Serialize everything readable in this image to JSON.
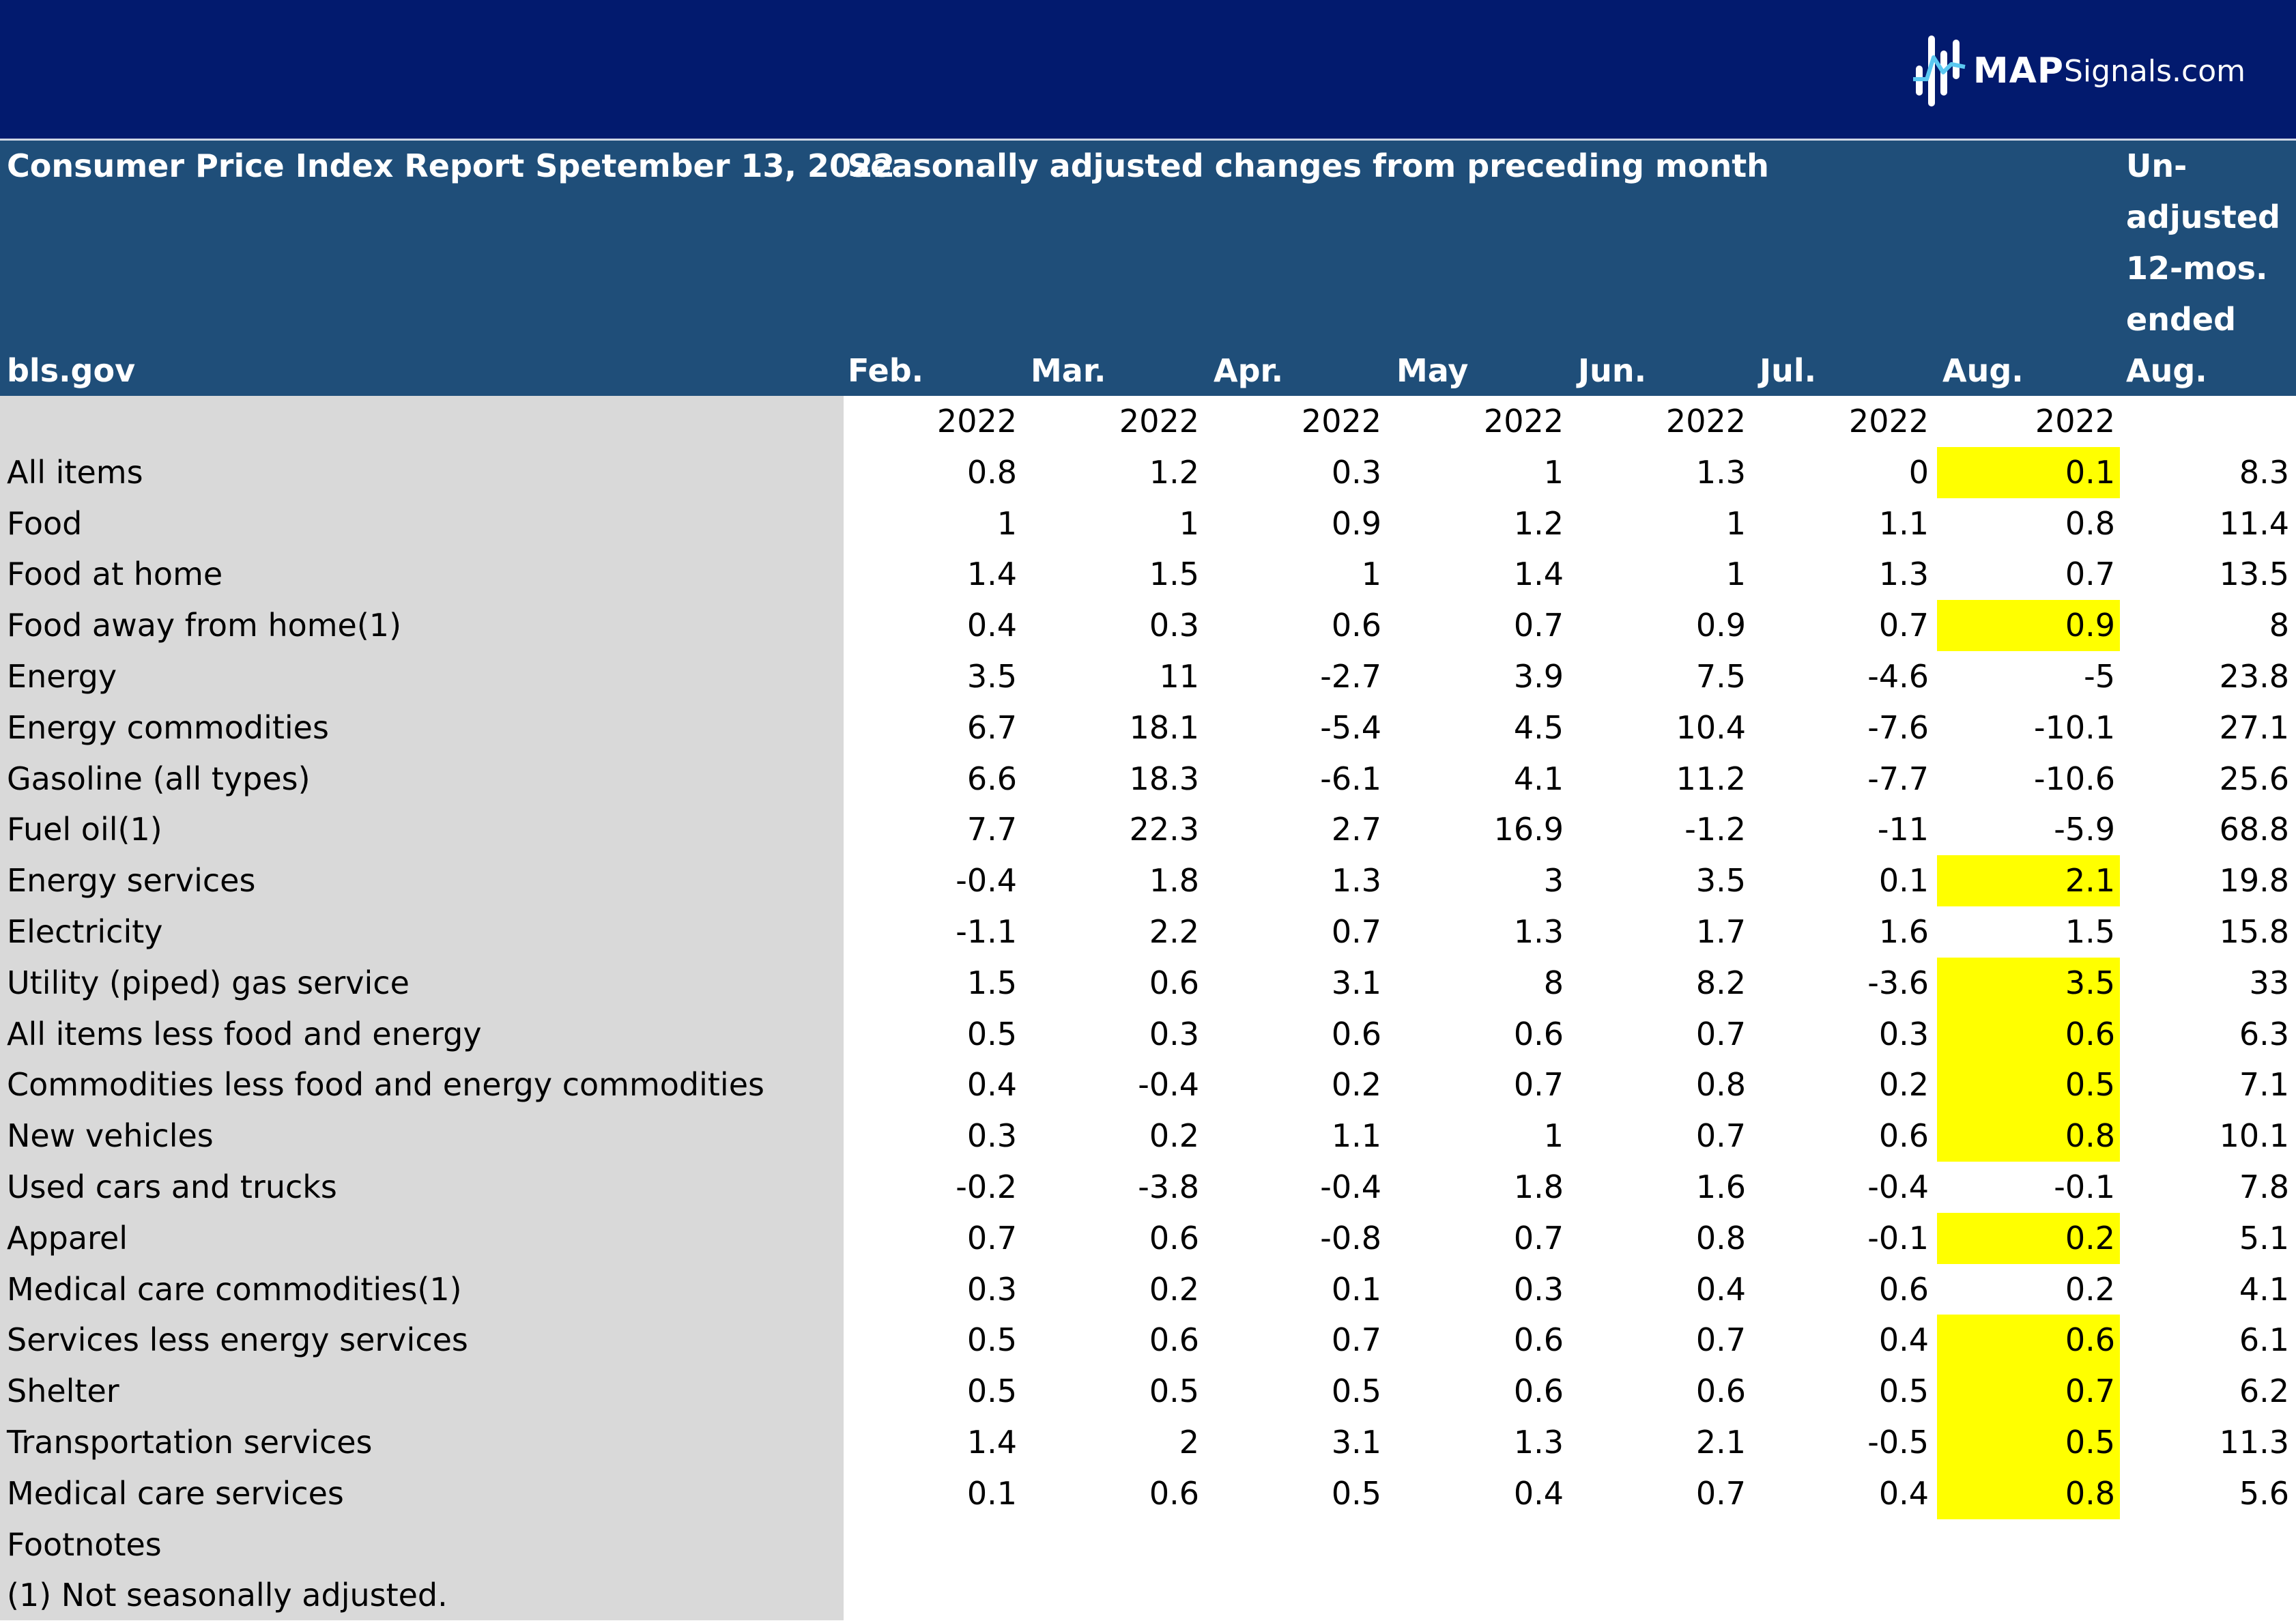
{
  "brand": {
    "name_bold": "MAP",
    "name_light": "Signals.com"
  },
  "header": {
    "title": "Consumer Price Index Report Spetember 13, 2022",
    "subtitle": "Seasonally adjusted changes from preceding month",
    "source": "bls.gov",
    "months": [
      "Feb.",
      "Mar.",
      "Apr.",
      "May",
      "Jun.",
      "Jul.",
      "Aug."
    ],
    "unadjusted": [
      "Un-",
      "adjusted",
      "12-mos.",
      "ended",
      "Aug. 2022"
    ]
  },
  "year_row": [
    "2022",
    "2022",
    "2022",
    "2022",
    "2022",
    "2022",
    "2022"
  ],
  "rows": [
    {
      "label": "All items",
      "values": [
        "0.8",
        "1.2",
        "0.3",
        "1",
        "1.3",
        "0",
        "0.1"
      ],
      "unadj": "8.3",
      "highlight": true
    },
    {
      "label": "Food",
      "values": [
        "1",
        "1",
        "0.9",
        "1.2",
        "1",
        "1.1",
        "0.8"
      ],
      "unadj": "11.4",
      "highlight": false
    },
    {
      "label": "Food at home",
      "values": [
        "1.4",
        "1.5",
        "1",
        "1.4",
        "1",
        "1.3",
        "0.7"
      ],
      "unadj": "13.5",
      "highlight": false
    },
    {
      "label": "Food away from home(1)",
      "values": [
        "0.4",
        "0.3",
        "0.6",
        "0.7",
        "0.9",
        "0.7",
        "0.9"
      ],
      "unadj": "8",
      "highlight": true
    },
    {
      "label": "Energy",
      "values": [
        "3.5",
        "11",
        "-2.7",
        "3.9",
        "7.5",
        "-4.6",
        "-5"
      ],
      "unadj": "23.8",
      "highlight": false
    },
    {
      "label": "Energy commodities",
      "values": [
        "6.7",
        "18.1",
        "-5.4",
        "4.5",
        "10.4",
        "-7.6",
        "-10.1"
      ],
      "unadj": "27.1",
      "highlight": false
    },
    {
      "label": "Gasoline (all types)",
      "values": [
        "6.6",
        "18.3",
        "-6.1",
        "4.1",
        "11.2",
        "-7.7",
        "-10.6"
      ],
      "unadj": "25.6",
      "highlight": false
    },
    {
      "label": "Fuel oil(1)",
      "values": [
        "7.7",
        "22.3",
        "2.7",
        "16.9",
        "-1.2",
        "-11",
        "-5.9"
      ],
      "unadj": "68.8",
      "highlight": false
    },
    {
      "label": "Energy services",
      "values": [
        "-0.4",
        "1.8",
        "1.3",
        "3",
        "3.5",
        "0.1",
        "2.1"
      ],
      "unadj": "19.8",
      "highlight": true
    },
    {
      "label": "Electricity",
      "values": [
        "-1.1",
        "2.2",
        "0.7",
        "1.3",
        "1.7",
        "1.6",
        "1.5"
      ],
      "unadj": "15.8",
      "highlight": false
    },
    {
      "label": "Utility (piped) gas service",
      "values": [
        "1.5",
        "0.6",
        "3.1",
        "8",
        "8.2",
        "-3.6",
        "3.5"
      ],
      "unadj": "33",
      "highlight": true
    },
    {
      "label": "All items less food and energy",
      "values": [
        "0.5",
        "0.3",
        "0.6",
        "0.6",
        "0.7",
        "0.3",
        "0.6"
      ],
      "unadj": "6.3",
      "highlight": true
    },
    {
      "label": "Commodities less food and energy commodities",
      "values": [
        "0.4",
        "-0.4",
        "0.2",
        "0.7",
        "0.8",
        "0.2",
        "0.5"
      ],
      "unadj": "7.1",
      "highlight": true
    },
    {
      "label": "New vehicles",
      "values": [
        "0.3",
        "0.2",
        "1.1",
        "1",
        "0.7",
        "0.6",
        "0.8"
      ],
      "unadj": "10.1",
      "highlight": true
    },
    {
      "label": "Used cars and trucks",
      "values": [
        "-0.2",
        "-3.8",
        "-0.4",
        "1.8",
        "1.6",
        "-0.4",
        "-0.1"
      ],
      "unadj": "7.8",
      "highlight": false
    },
    {
      "label": "Apparel",
      "values": [
        "0.7",
        "0.6",
        "-0.8",
        "0.7",
        "0.8",
        "-0.1",
        "0.2"
      ],
      "unadj": "5.1",
      "highlight": true
    },
    {
      "label": "Medical care commodities(1)",
      "values": [
        "0.3",
        "0.2",
        "0.1",
        "0.3",
        "0.4",
        "0.6",
        "0.2"
      ],
      "unadj": "4.1",
      "highlight": false
    },
    {
      "label": "Services less energy services",
      "values": [
        "0.5",
        "0.6",
        "0.7",
        "0.6",
        "0.7",
        "0.4",
        "0.6"
      ],
      "unadj": "6.1",
      "highlight": true
    },
    {
      "label": "Shelter",
      "values": [
        "0.5",
        "0.5",
        "0.5",
        "0.6",
        "0.6",
        "0.5",
        "0.7"
      ],
      "unadj": "6.2",
      "highlight": true
    },
    {
      "label": "Transportation services",
      "values": [
        "1.4",
        "2",
        "3.1",
        "1.3",
        "2.1",
        "-0.5",
        "0.5"
      ],
      "unadj": "11.3",
      "highlight": true
    },
    {
      "label": "Medical care services",
      "values": [
        "0.1",
        "0.6",
        "0.5",
        "0.4",
        "0.7",
        "0.4",
        "0.8"
      ],
      "unadj": "5.6",
      "highlight": true
    }
  ],
  "footnotes": {
    "title": "Footnotes",
    "note": "(1) Not seasonally adjusted."
  },
  "colors": {
    "brand_bar": "#021a6e",
    "header": "#1f4e79",
    "label_column": "#d9d9d9",
    "highlight": "#ffff00"
  }
}
